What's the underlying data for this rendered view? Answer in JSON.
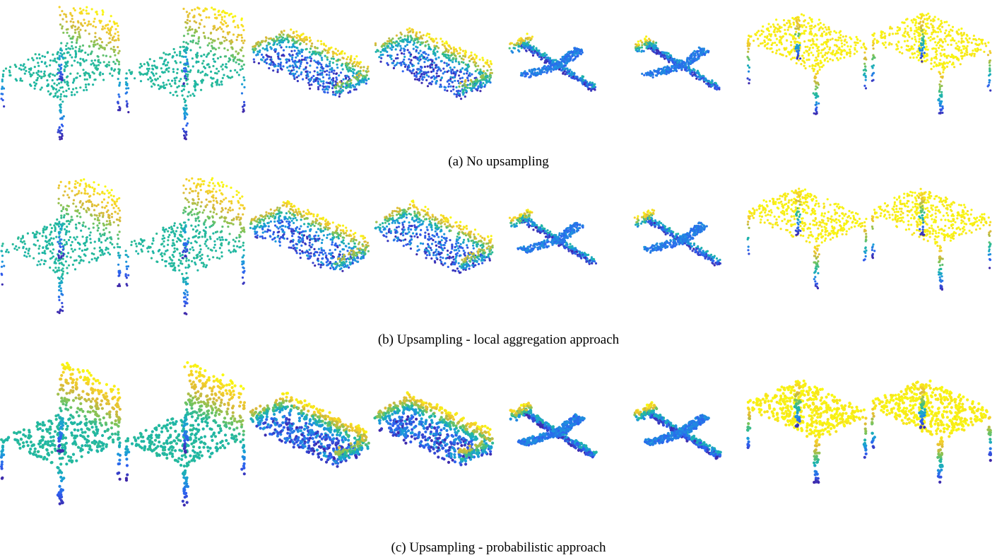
{
  "rows": [
    {
      "caption": "(a) No upsampling",
      "shapes": [
        "chair",
        "chair-2",
        "sofa",
        "sofa-2",
        "airplane",
        "airplane-2",
        "table",
        "table-2"
      ]
    },
    {
      "caption": "(b) Upsampling - local aggregation approach",
      "shapes": [
        "chair",
        "chair-2",
        "sofa",
        "sofa-2",
        "airplane",
        "airplane-2",
        "table",
        "table-2"
      ]
    },
    {
      "caption": "(c) Upsampling - probabilistic approach",
      "shapes": [
        "chair",
        "chair-2",
        "sofa",
        "sofa-2",
        "airplane",
        "airplane-2",
        "table",
        "table-2"
      ]
    }
  ],
  "colormap": [
    "#3e26a8",
    "#2e5ff0",
    "#1a9fd8",
    "#20b8a0",
    "#7ac45a",
    "#d8b93a",
    "#f5d02a",
    "#f9fb0e"
  ]
}
